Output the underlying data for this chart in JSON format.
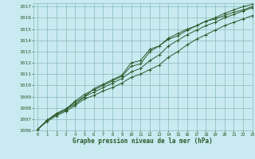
{
  "title": "Graphe pression niveau de la mer (hPa)",
  "bg_color": "#c8eaf0",
  "grid_color": "#88bbbb",
  "line_color": "#2a5a2a",
  "xlim": [
    -0.5,
    23
  ],
  "ylim": [
    1006,
    1017.3
  ],
  "xticks": [
    0,
    1,
    2,
    3,
    4,
    5,
    6,
    7,
    8,
    9,
    10,
    11,
    12,
    13,
    14,
    15,
    16,
    17,
    18,
    19,
    20,
    21,
    22,
    23
  ],
  "yticks": [
    1006,
    1007,
    1008,
    1009,
    1010,
    1011,
    1012,
    1013,
    1014,
    1015,
    1016,
    1017
  ],
  "series": [
    [
      1006.1,
      1006.9,
      1007.5,
      1007.9,
      1008.3,
      1009.0,
      1009.7,
      1010.1,
      1010.5,
      1010.9,
      1012.0,
      1012.2,
      1013.2,
      1013.5,
      1014.1,
      1014.4,
      1014.9,
      1015.3,
      1015.7,
      1016.0,
      1016.4,
      1016.7,
      1017.0,
      1017.2
    ],
    [
      1006.1,
      1006.9,
      1007.5,
      1007.9,
      1008.6,
      1009.2,
      1009.6,
      1010.0,
      1010.4,
      1010.8,
      1011.7,
      1011.9,
      1013.0,
      1013.5,
      1014.2,
      1014.6,
      1015.0,
      1015.3,
      1015.7,
      1015.9,
      1016.2,
      1016.5,
      1016.7,
      1017.0
    ],
    [
      1006.1,
      1006.9,
      1007.4,
      1007.8,
      1008.5,
      1009.0,
      1009.4,
      1009.8,
      1010.2,
      1010.6,
      1011.2,
      1011.5,
      1012.2,
      1012.7,
      1013.5,
      1014.0,
      1014.5,
      1014.9,
      1015.3,
      1015.6,
      1016.0,
      1016.3,
      1016.6,
      1016.9
    ],
    [
      1006.1,
      1006.8,
      1007.3,
      1007.7,
      1008.2,
      1008.8,
      1009.1,
      1009.5,
      1009.8,
      1010.2,
      1010.7,
      1011.0,
      1011.4,
      1011.8,
      1012.5,
      1013.0,
      1013.6,
      1014.1,
      1014.5,
      1014.9,
      1015.3,
      1015.6,
      1015.9,
      1016.2
    ]
  ]
}
